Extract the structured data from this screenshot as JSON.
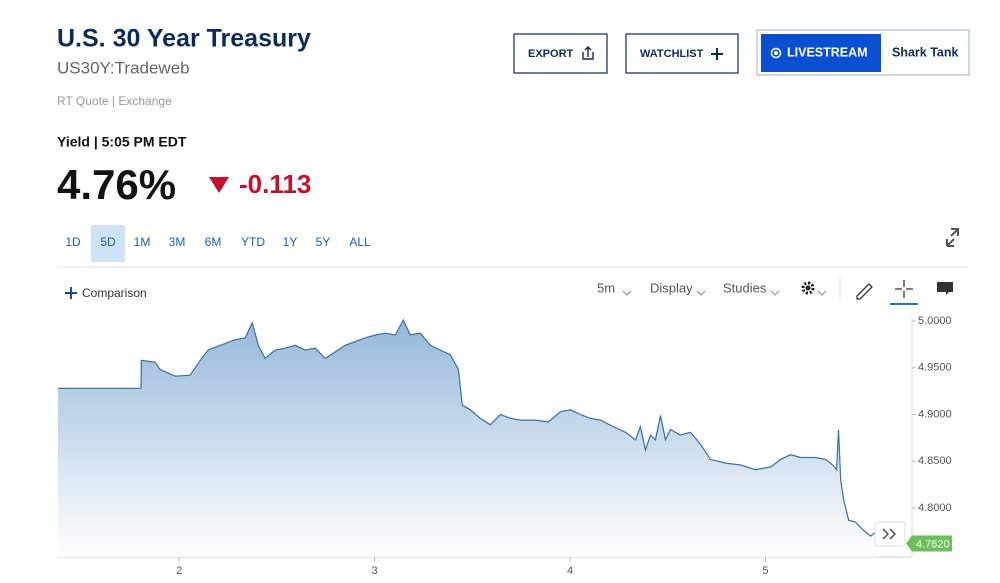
{
  "header": {
    "title": "U.S. 30 Year Treasury",
    "symbol": "US30Y:Tradeweb",
    "source": "RT Quote | Exchange"
  },
  "buttons": {
    "export": "EXPORT",
    "watchlist": "WATCHLIST",
    "livestream": "LIVESTREAM",
    "show": "Shark Tank"
  },
  "quote": {
    "label": "Yield | 5:05 PM EDT",
    "price": "4.76%",
    "change": "-0.113"
  },
  "ranges": [
    "1D",
    "5D",
    "1M",
    "3M",
    "6M",
    "YTD",
    "1Y",
    "5Y",
    "ALL"
  ],
  "selected_range": 1,
  "toolbar": {
    "comparison": "Comparison",
    "interval": "5m",
    "display": "Display",
    "studies": "Studies"
  },
  "chart_data": {
    "type": "area",
    "color": "#3a6f9e",
    "x": [
      1.38,
      1.805,
      1.806,
      1.877,
      1.903,
      1.98,
      2.056,
      2.108,
      2.148,
      2.21,
      2.287,
      2.338,
      2.374,
      2.405,
      2.44,
      2.492,
      2.543,
      2.594,
      2.645,
      2.696,
      2.748,
      2.799,
      2.85,
      2.901,
      2.952,
      3.004,
      3.055,
      3.106,
      3.147,
      3.183,
      3.234,
      3.285,
      3.336,
      3.388,
      3.429,
      3.449,
      3.49,
      3.541,
      3.592,
      3.644,
      3.695,
      3.746,
      3.823,
      3.889,
      3.951,
      4.002,
      4.053,
      4.104,
      4.156,
      4.232,
      4.284,
      4.335,
      4.36,
      4.386,
      4.412,
      4.437,
      4.463,
      4.488,
      4.514,
      4.565,
      4.616,
      4.668,
      4.719,
      4.796,
      4.873,
      4.949,
      5.028,
      5.077,
      5.129,
      5.18,
      5.257,
      5.308,
      5.344,
      5.364,
      5.374,
      5.385,
      5.4,
      5.426,
      5.461,
      5.497,
      5.538,
      5.569
    ],
    "values": [
      4.928,
      4.928,
      4.958,
      4.956,
      4.948,
      4.941,
      4.942,
      4.958,
      4.969,
      4.974,
      4.98,
      4.982,
      4.998,
      4.974,
      4.96,
      4.969,
      4.971,
      4.974,
      4.969,
      4.971,
      4.96,
      4.967,
      4.974,
      4.978,
      4.982,
      4.985,
      4.987,
      4.985,
      5.001,
      4.985,
      4.987,
      4.974,
      4.969,
      4.964,
      4.948,
      4.91,
      4.905,
      4.896,
      4.889,
      4.9,
      4.896,
      4.894,
      4.894,
      4.892,
      4.903,
      4.905,
      4.9,
      4.896,
      4.894,
      4.886,
      4.881,
      4.873,
      4.887,
      4.862,
      4.878,
      4.873,
      4.899,
      4.873,
      4.884,
      4.878,
      4.881,
      4.868,
      4.852,
      4.848,
      4.846,
      4.841,
      4.844,
      4.852,
      4.857,
      4.854,
      4.854,
      4.852,
      4.846,
      4.841,
      4.884,
      4.83,
      4.809,
      4.787,
      4.785,
      4.777,
      4.77,
      4.775
    ],
    "xlim": [
      1.38,
      5.75
    ],
    "xticks": [
      2,
      3,
      4,
      5
    ],
    "ylim": [
      4.7476,
      5.0043
    ],
    "yticks": [
      {
        "value": 4.8,
        "label": "4.8000"
      },
      {
        "value": 4.85,
        "label": "4.8500"
      },
      {
        "value": 4.9,
        "label": "4.9000"
      },
      {
        "value": 4.95,
        "label": "4.9500"
      },
      {
        "value": 5.0,
        "label": "5.0000"
      }
    ],
    "last_value": {
      "value": 4.762,
      "label": "4.7620"
    }
  }
}
